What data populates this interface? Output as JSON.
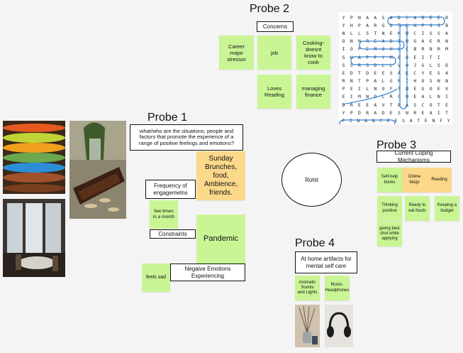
{
  "probe2": {
    "title": "Probe 2",
    "header": "Concerns",
    "notes": [
      "Career major stressor",
      "job",
      "Cooking- doesnt know to cook",
      "Loves Reading",
      "managing finance"
    ]
  },
  "wordsearch": {
    "rows": [
      "YPNAASADCAREER",
      "YHPARGOTOHPSSB",
      "NLLSTNEMNCISSA",
      "ONNREADINGAERN",
      "IOPEMOHLCBRNRM",
      "SHAPPYMEOEITI",
      "SSRSDLLVOJGLSD",
      "EDTDEESAKCYESA",
      "RNTPALGRIHOSNN",
      "PEILNOFTNEGOEX",
      "EIMNOCRCUEALNI",
      "DREEAVTEASCOTE",
      "YPDRADESNREAIT",
      "FINANCEESATENFY"
    ],
    "highlight_color": "#2f7fd6"
  },
  "probe1": {
    "title": "Probe 1",
    "question": "what/who are the situations, people and factors that promote the experience of a range of positive feelings and emotions?",
    "answer": "Sunday Brunches, food, Ambience, friends.",
    "frequency_label": "Frequency of engagemetns",
    "frequency_value": "few times in a month",
    "constraints_label": "Constraints",
    "constraints_value": "Pandemic",
    "negative_label": "Negaive Emotions Experiencing",
    "negative_value": "feels sad"
  },
  "center": {
    "name": "Rohit"
  },
  "probe3": {
    "title": "Probe 3",
    "header": "Current Coping Mechanisms",
    "notes": [
      "Self-help books",
      "Online blogs",
      "Reading",
      "Thinking positive",
      "Ready to eat foods",
      "Keeping a budget",
      "giving best shot while applying"
    ]
  },
  "probe4": {
    "title": "Probe 4",
    "header": "At home artifacts for mental self care",
    "notes": [
      "Aromatic Scents and Lights",
      "Music- Headphones"
    ]
  },
  "colors": {
    "green_note": "#c9f595",
    "orange_note": "#fbd88a",
    "background": "#f4f4f4"
  }
}
